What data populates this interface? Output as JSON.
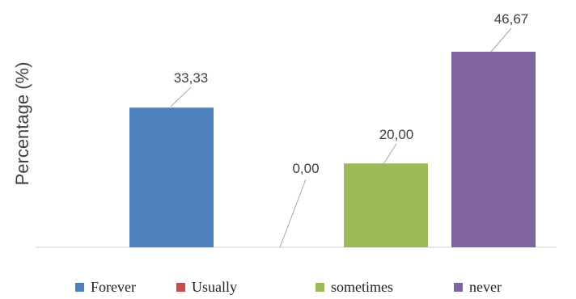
{
  "chart_data": {
    "type": "bar",
    "categories": [
      "Forever",
      "Usually",
      "sometimes",
      "never"
    ],
    "values": [
      33.33,
      0.0,
      20.0,
      46.67
    ],
    "data_labels": [
      "33,33",
      "0,00",
      "20,00",
      "46,67"
    ],
    "ylabel": "Percentage (%)",
    "xlabel": "",
    "ylim": [
      0,
      55
    ],
    "grid": false,
    "legend_position": "bottom",
    "colors": [
      "#4f81bd",
      "#c0504d",
      "#9bbb59",
      "#8064a2"
    ]
  }
}
